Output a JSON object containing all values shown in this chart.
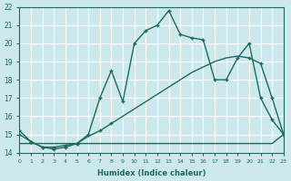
{
  "xlabel": "Humidex (Indice chaleur)",
  "bg_color": "#cce8ec",
  "grid_color": "#ffffff",
  "line_color": "#1a6b5a",
  "line1_x": [
    0,
    1,
    2,
    3,
    4,
    5,
    6,
    7,
    8,
    9,
    10,
    11,
    12,
    13,
    14,
    15,
    16,
    17,
    18,
    19,
    20,
    21,
    22,
    23
  ],
  "line1_y": [
    14.5,
    14.5,
    14.5,
    14.5,
    14.5,
    14.5,
    14.5,
    14.5,
    14.5,
    14.5,
    14.5,
    14.5,
    14.5,
    14.5,
    14.5,
    14.5,
    14.5,
    14.5,
    14.5,
    14.5,
    14.5,
    14.5,
    14.5,
    15.0
  ],
  "line2_x": [
    0,
    1,
    2,
    3,
    4,
    5,
    6,
    7,
    8,
    9,
    10,
    11,
    12,
    13,
    14,
    15,
    16,
    17,
    18,
    19,
    20,
    21,
    22,
    23
  ],
  "line2_y": [
    15.0,
    14.6,
    14.3,
    14.3,
    14.4,
    14.5,
    14.9,
    15.2,
    15.6,
    16.0,
    16.4,
    16.8,
    17.2,
    17.6,
    18.0,
    18.4,
    18.7,
    19.0,
    19.2,
    19.3,
    19.2,
    18.9,
    17.0,
    15.0
  ],
  "line3_x": [
    0,
    1,
    2,
    3,
    4,
    5,
    6,
    7,
    8,
    9,
    10,
    11,
    12,
    13,
    14,
    15,
    16,
    17,
    18,
    19,
    20,
    21,
    22,
    23
  ],
  "line3_y": [
    15.2,
    14.6,
    14.3,
    14.2,
    14.3,
    14.5,
    15.0,
    17.0,
    18.5,
    16.8,
    20.0,
    20.7,
    21.0,
    21.8,
    20.5,
    20.3,
    20.2,
    18.0,
    18.0,
    19.2,
    20.0,
    17.0,
    15.8,
    15.0
  ],
  "line2_markers_x": [
    0,
    1,
    2,
    3,
    4,
    5,
    7,
    8,
    20,
    21,
    22,
    23
  ],
  "line2_markers_y": [
    15.0,
    14.6,
    14.3,
    14.3,
    14.4,
    14.5,
    15.2,
    15.6,
    19.2,
    18.9,
    17.0,
    15.0
  ],
  "line3_markers_x": [
    0,
    1,
    2,
    3,
    4,
    5,
    6,
    7,
    8,
    9,
    10,
    11,
    12,
    13,
    14,
    15,
    16,
    17,
    18,
    19,
    20,
    21,
    22,
    23
  ],
  "line3_markers_y": [
    15.2,
    14.6,
    14.3,
    14.2,
    14.3,
    14.5,
    15.0,
    17.0,
    18.5,
    16.8,
    20.0,
    20.7,
    21.0,
    21.8,
    20.5,
    20.3,
    20.2,
    18.0,
    18.0,
    19.2,
    20.0,
    17.0,
    15.8,
    15.0
  ],
  "ylim": [
    14,
    22
  ],
  "xlim": [
    0,
    23
  ],
  "yticks": [
    14,
    15,
    16,
    17,
    18,
    19,
    20,
    21,
    22
  ],
  "xticks": [
    0,
    1,
    2,
    3,
    4,
    5,
    6,
    7,
    8,
    9,
    10,
    11,
    12,
    13,
    14,
    15,
    16,
    17,
    18,
    19,
    20,
    21,
    22,
    23
  ]
}
